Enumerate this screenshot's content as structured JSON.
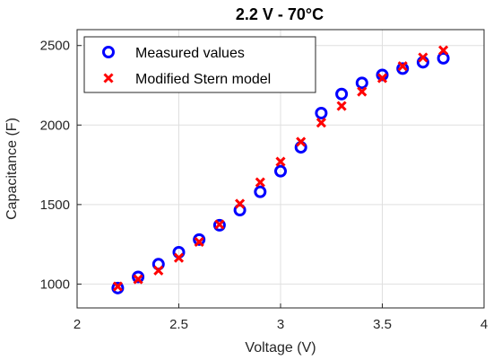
{
  "chart_data": {
    "type": "scatter",
    "title": "2.2 V - 70°C",
    "xlabel": "Voltage (V)",
    "ylabel": "Capacitance (F)",
    "xlim": [
      2,
      4
    ],
    "ylim": [
      850,
      2600
    ],
    "xticks": [
      2,
      2.5,
      3,
      3.5,
      4
    ],
    "xtick_labels": [
      "2",
      "2.5",
      "3",
      "3.5",
      "4"
    ],
    "yticks": [
      1000,
      1500,
      2000,
      2500
    ],
    "ytick_labels": [
      "1000",
      "1500",
      "2000",
      "2500"
    ],
    "grid": true,
    "legend_position": "top-left",
    "series": [
      {
        "name": "Measured values",
        "marker": "circle",
        "color": "#0000ff",
        "x": [
          2.2,
          2.3,
          2.4,
          2.5,
          2.6,
          2.7,
          2.8,
          2.9,
          3.0,
          3.1,
          3.2,
          3.3,
          3.4,
          3.5,
          3.6,
          3.7,
          3.8
        ],
        "y": [
          975,
          1045,
          1125,
          1200,
          1280,
          1370,
          1465,
          1580,
          1710,
          1860,
          2075,
          2195,
          2265,
          2315,
          2355,
          2395,
          2420
        ]
      },
      {
        "name": "Modified Stern model",
        "marker": "x",
        "color": "#ff0000",
        "x": [
          2.2,
          2.3,
          2.4,
          2.5,
          2.6,
          2.7,
          2.8,
          2.9,
          3.0,
          3.1,
          3.2,
          3.3,
          3.4,
          3.5,
          3.6,
          3.7,
          3.8
        ],
        "y": [
          985,
          1030,
          1085,
          1165,
          1265,
          1375,
          1505,
          1640,
          1770,
          1895,
          2015,
          2120,
          2210,
          2295,
          2370,
          2425,
          2470
        ]
      }
    ]
  }
}
